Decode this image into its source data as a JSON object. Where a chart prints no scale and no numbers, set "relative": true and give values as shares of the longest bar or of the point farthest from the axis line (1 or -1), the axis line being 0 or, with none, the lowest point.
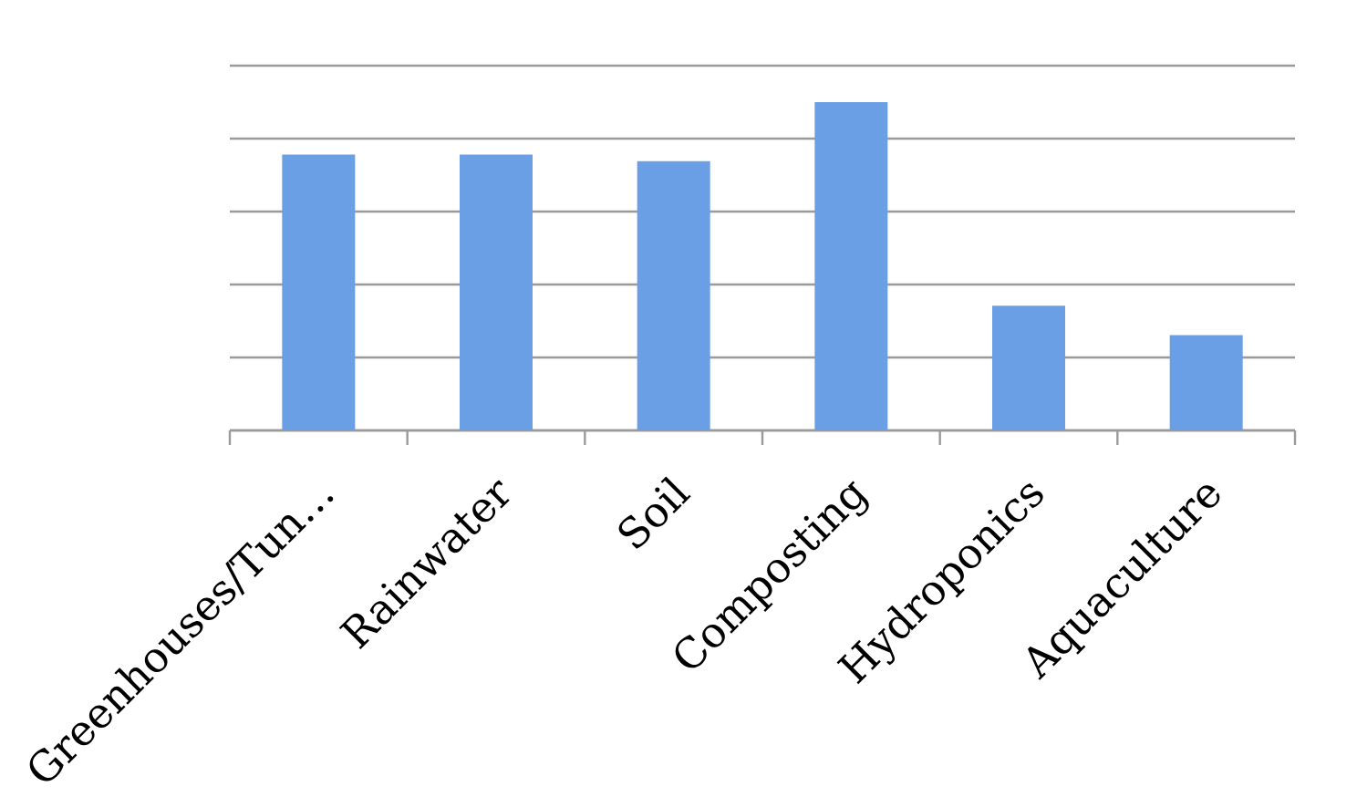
{
  "chart_data": {
    "type": "bar",
    "categories": [
      "Greenhouses/Tun…",
      "Rainwater",
      "Soil",
      "Composting",
      "Hydroponics",
      "Aquaculture"
    ],
    "values": [
      0.84,
      0.84,
      0.82,
      1,
      0.38,
      0.29
    ],
    "color": "#6a9fe6",
    "relative": true,
    "grid": "y"
  }
}
